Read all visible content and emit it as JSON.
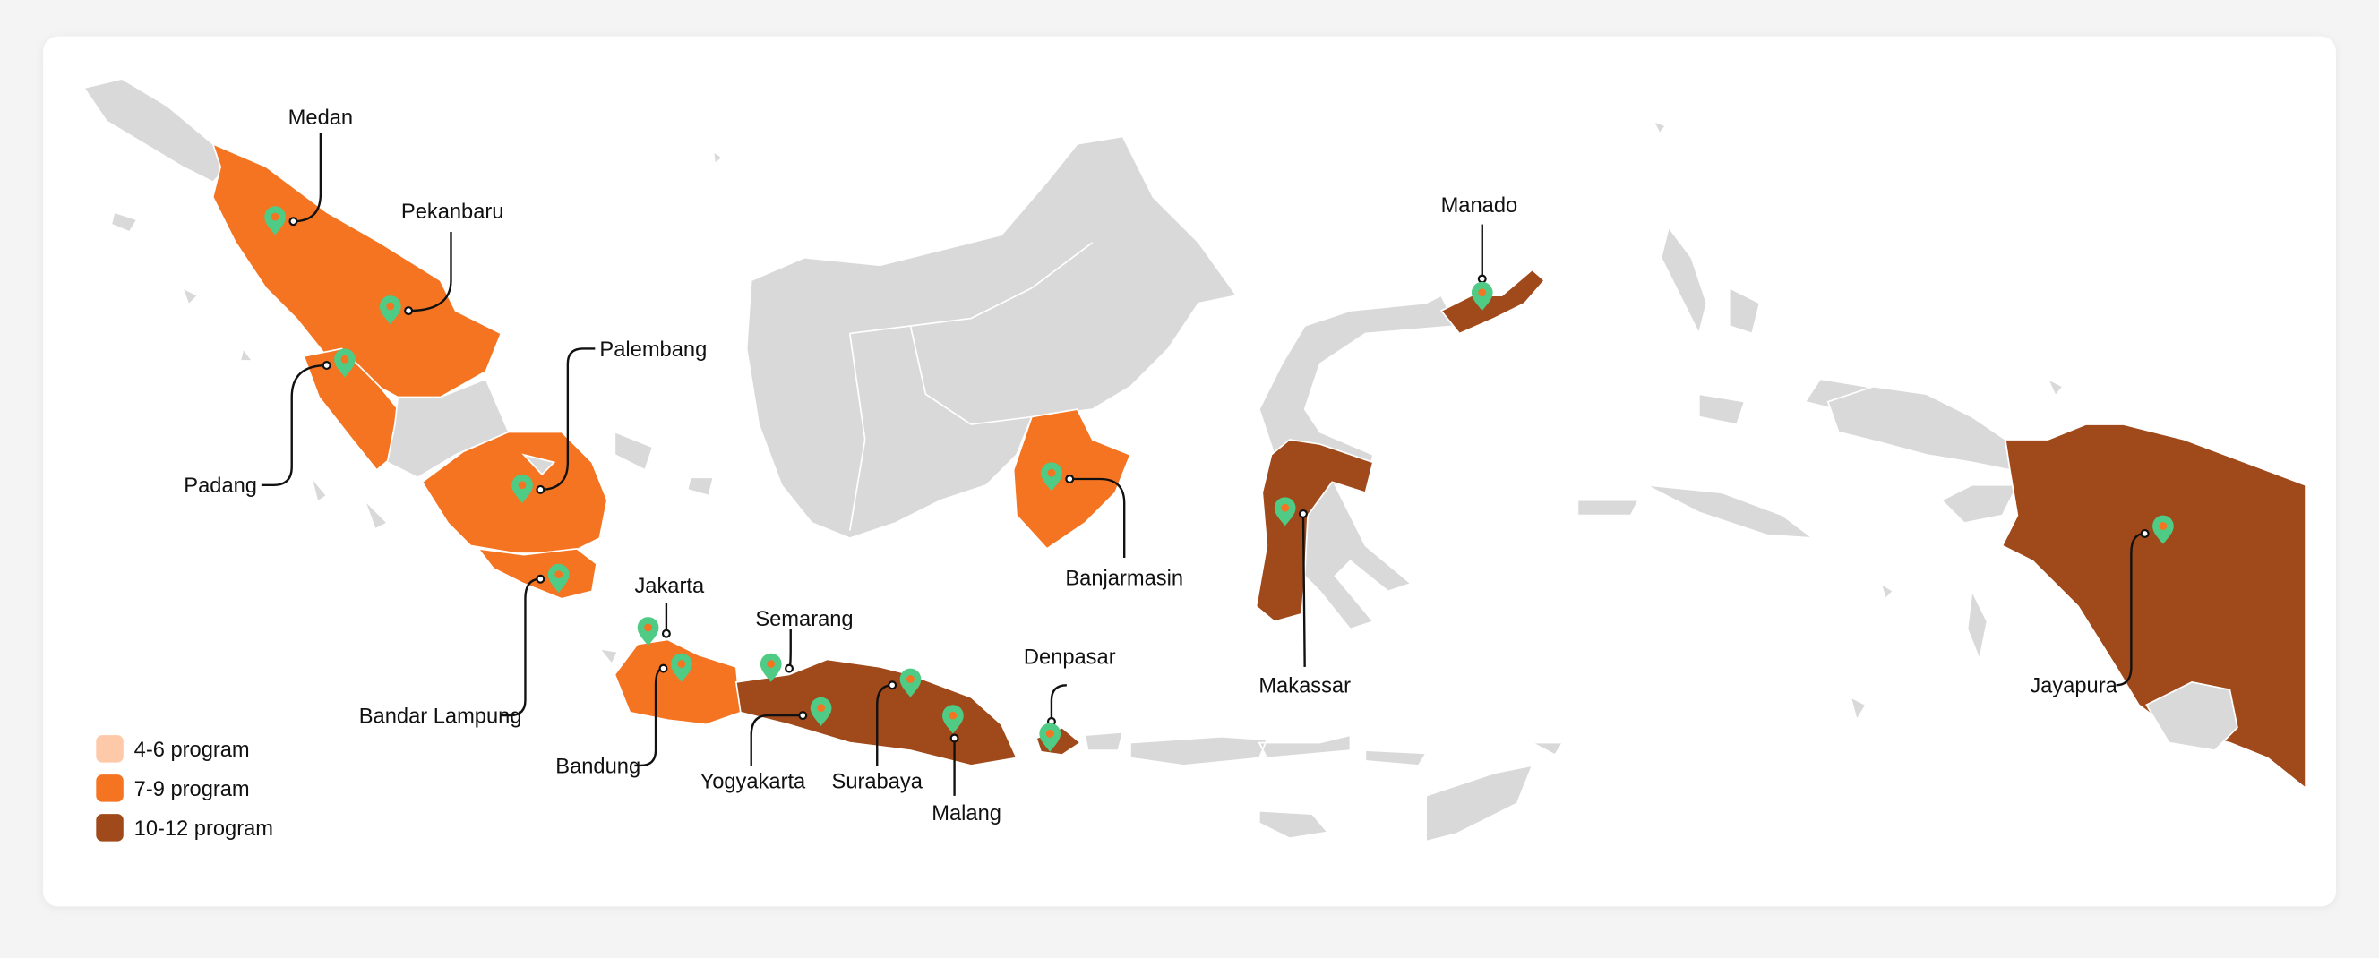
{
  "colors": {
    "none": "#d9d9d9",
    "range_4_6": "#fdc9a8",
    "range_7_9": "#f47421",
    "range_10_12": "#a0491a",
    "pin": "#4fcb86"
  },
  "legend": [
    {
      "label": "4-6 program",
      "color": "#fdc9a8"
    },
    {
      "label": "7-9 program",
      "color": "#f47421"
    },
    {
      "label": "10-12 program",
      "color": "#a0491a"
    }
  ],
  "cities": [
    {
      "name": "Medan",
      "range": "7-9 program"
    },
    {
      "name": "Pekanbaru",
      "range": "7-9 program"
    },
    {
      "name": "Padang",
      "range": "7-9 program"
    },
    {
      "name": "Palembang",
      "range": "7-9 program"
    },
    {
      "name": "Bandar Lampung",
      "range": "7-9 program"
    },
    {
      "name": "Jakarta",
      "range": "7-9 program"
    },
    {
      "name": "Bandung",
      "range": "7-9 program"
    },
    {
      "name": "Semarang",
      "range": "10-12 program"
    },
    {
      "name": "Yogyakarta",
      "range": "10-12 program"
    },
    {
      "name": "Surabaya",
      "range": "10-12 program"
    },
    {
      "name": "Malang",
      "range": "10-12 program"
    },
    {
      "name": "Denpasar",
      "range": "10-12 program"
    },
    {
      "name": "Banjarmasin",
      "range": "7-9 program"
    },
    {
      "name": "Manado",
      "range": "10-12 program"
    },
    {
      "name": "Makassar",
      "range": "10-12 program"
    },
    {
      "name": "Jayapura",
      "range": "10-12 program"
    }
  ]
}
